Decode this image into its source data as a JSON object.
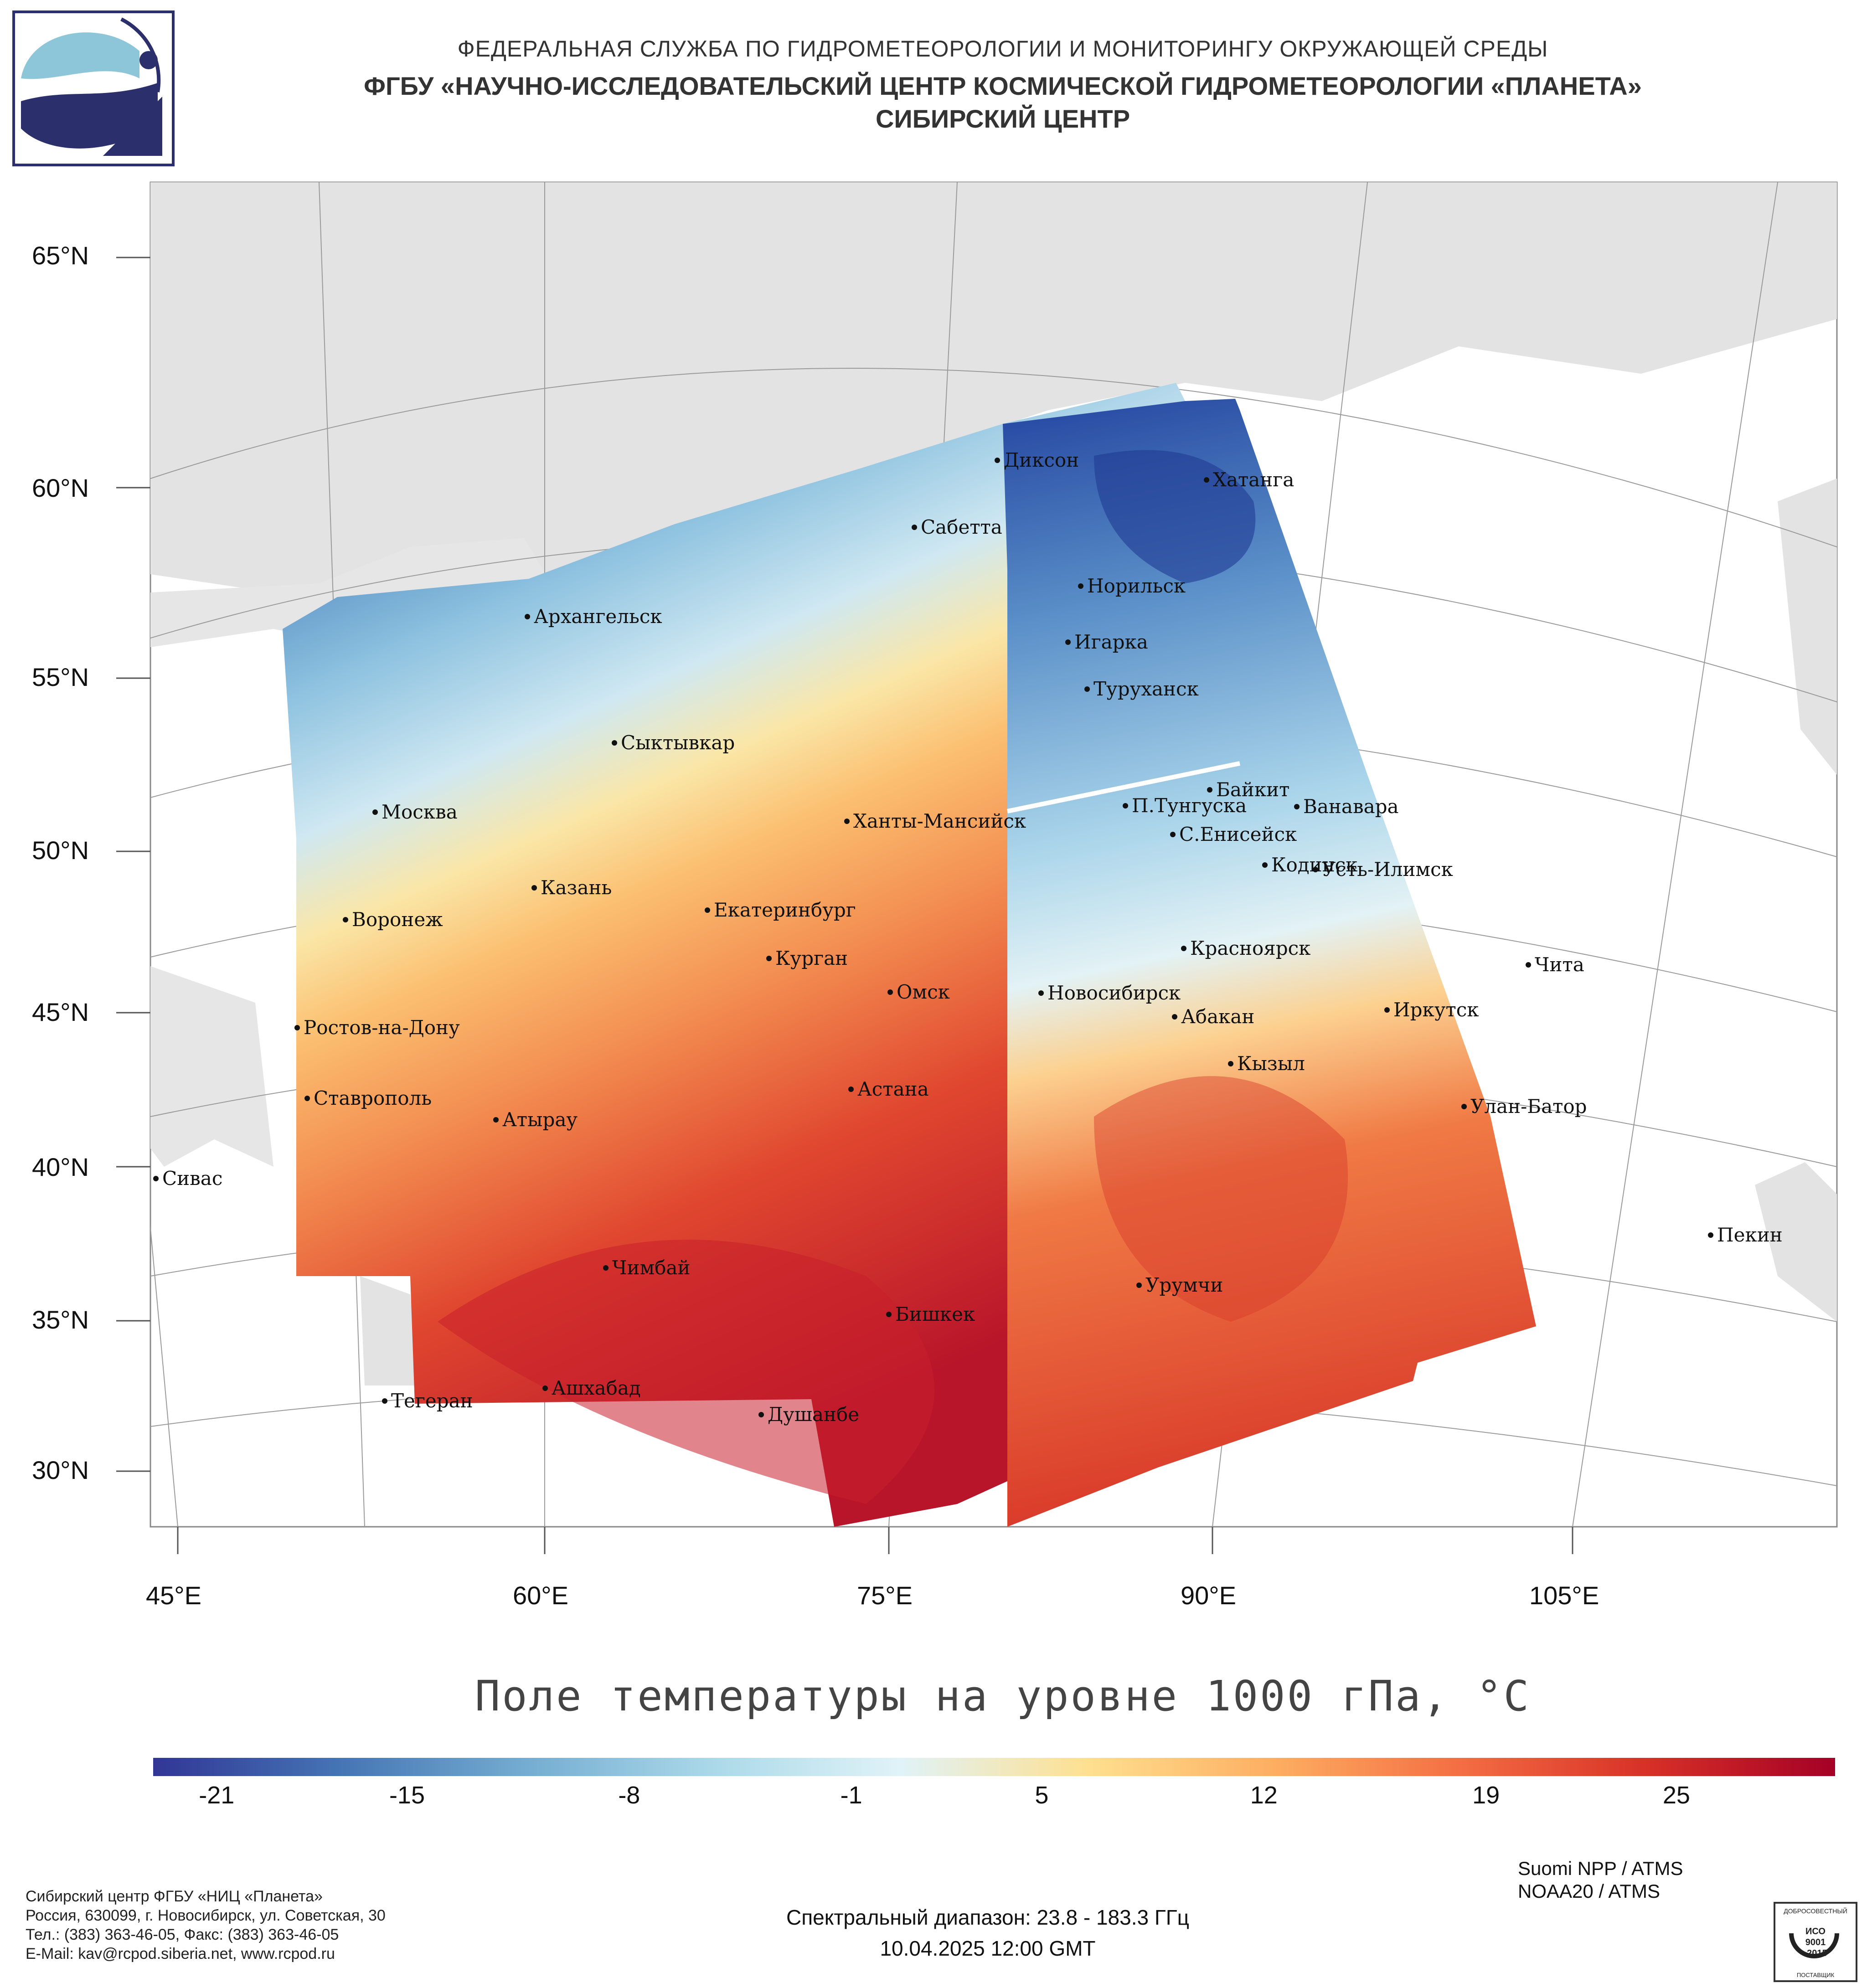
{
  "header": {
    "line1": "ФЕДЕРАЛЬНАЯ СЛУЖБА ПО ГИДРОМЕТЕОРОЛОГИИ И МОНИТОРИНГУ ОКРУЖАЮЩЕЙ СРЕДЫ",
    "line2": "ФГБУ «НАУЧНО-ИССЛЕДОВАТЕЛЬСКИЙ ЦЕНТР КОСМИЧЕСКОЙ ГИДРОМЕТЕОРОЛОГИИ «ПЛАНЕТА»",
    "line3": "СИБИРСКИЙ ЦЕНТР"
  },
  "map": {
    "lat_labels": [
      "65°N",
      "60°N",
      "55°N",
      "50°N",
      "45°N",
      "40°N",
      "35°N",
      "30°N"
    ],
    "lon_labels": [
      "45°E",
      "60°E",
      "75°E",
      "90°E",
      "105°E"
    ],
    "cities": [
      {
        "name": "Диксон"
      },
      {
        "name": "Хатанга"
      },
      {
        "name": "Сабетта"
      },
      {
        "name": "Норильск"
      },
      {
        "name": "Архангельск"
      },
      {
        "name": "Игарка"
      },
      {
        "name": "Туруханск"
      },
      {
        "name": "Сыктывкар"
      },
      {
        "name": "Байкит"
      },
      {
        "name": "П.Тунгуска"
      },
      {
        "name": "Ванавара"
      },
      {
        "name": "Москва"
      },
      {
        "name": "Ханты-Мансийск"
      },
      {
        "name": "С.Енисейск"
      },
      {
        "name": "Кодинск"
      },
      {
        "name": "Усть-Илимск"
      },
      {
        "name": "Казань"
      },
      {
        "name": "Екатеринбург"
      },
      {
        "name": "Воронеж"
      },
      {
        "name": "Красноярск"
      },
      {
        "name": "Курган"
      },
      {
        "name": "Чита"
      },
      {
        "name": "Омск"
      },
      {
        "name": "Новосибирск"
      },
      {
        "name": "Иркутск"
      },
      {
        "name": "Ростов-на-Дону"
      },
      {
        "name": "Абакан"
      },
      {
        "name": "Кызыл"
      },
      {
        "name": "Ставрополь"
      },
      {
        "name": "Астана"
      },
      {
        "name": "Улан-Батор"
      },
      {
        "name": "Атырау"
      },
      {
        "name": "Сивас"
      },
      {
        "name": "Пекин"
      },
      {
        "name": "Чимбай"
      },
      {
        "name": "Урумчи"
      },
      {
        "name": "Бишкек"
      },
      {
        "name": "Ашхабад"
      },
      {
        "name": "Тегеран"
      },
      {
        "name": "Душанбе"
      }
    ]
  },
  "product_title": "Поле температуры на уровне 1000 гПа, °C",
  "colorbar": {
    "ticks": [
      "-21",
      "-15",
      "-8",
      "-1",
      "5",
      "12",
      "19",
      "25"
    ],
    "min": -23,
    "max": 30,
    "colors": [
      "#313695",
      "#4575b4",
      "#74add1",
      "#abd9e9",
      "#e0f3f8",
      "#fee090",
      "#fdae61",
      "#f46d43",
      "#d73027",
      "#a50026"
    ]
  },
  "footer_left": [
    "Сибирский центр ФГБУ «НИЦ «Планета»",
    "Россия, 630099, г. Новосибирск, ул. Советская, 30",
    "Тел.: (383) 363-46-05, Факс: (383) 363-46-05",
    "E-Mail: kav@rcpod.siberia.net, www.rcpod.ru"
  ],
  "satellites": [
    "Suomi NPP / ATMS",
    "NOAA20 / ATMS"
  ],
  "spectral": "Спектральный диапазон: 23.8 - 183.3 ГГц",
  "datetime": "10.04.2025 12:00 GMT",
  "iso_badge": {
    "top": "ДОБРОСОВЕСТНЫЙ",
    "mid1": "ИСО",
    "mid2": "9001",
    "mid3": "-2015",
    "bottom": "ПОСТАВЩИК"
  }
}
